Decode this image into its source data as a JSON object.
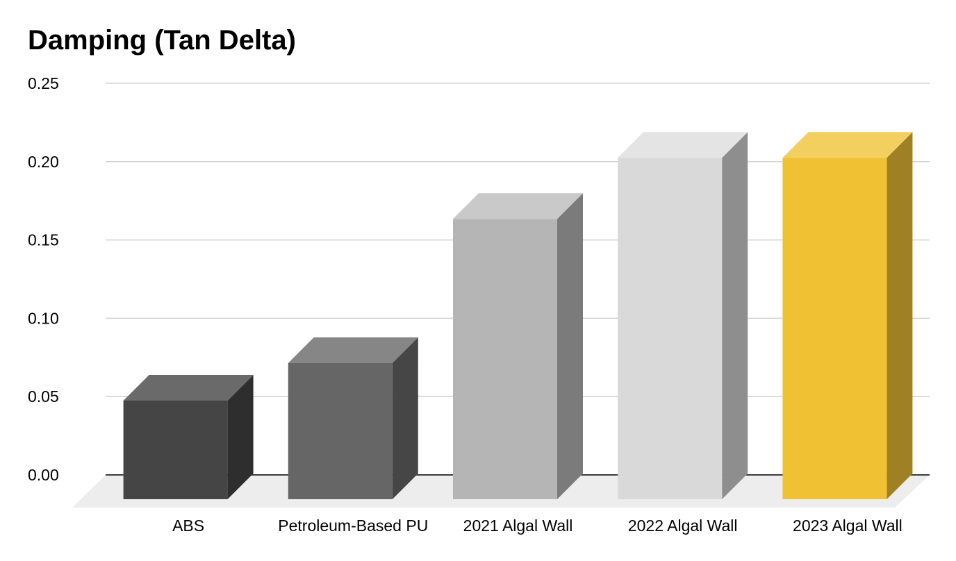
{
  "chart_data": {
    "type": "bar",
    "style": "3d",
    "title": "Damping (Tan Delta)",
    "xlabel": "",
    "ylabel": "",
    "ylim": [
      0,
      0.25
    ],
    "yticks": [
      "0.00",
      "0.05",
      "0.10",
      "0.15",
      "0.20",
      "0.25"
    ],
    "ytick_values": [
      0,
      0.05,
      0.1,
      0.15,
      0.2,
      0.25
    ],
    "grid": true,
    "legend": "none",
    "categories": [
      "ABS",
      "Petroleum-Based PU",
      "2021 Algal Wall",
      "2022 Algal Wall",
      "2023 Algal Wall"
    ],
    "values": [
      0.047,
      0.071,
      0.163,
      0.202,
      0.202
    ],
    "colors": {
      "front": [
        "#454545",
        "#666666",
        "#b5b5b5",
        "#d9d9d9",
        "#f0c133"
      ],
      "top": [
        "#6a6a6a",
        "#868686",
        "#c9c9c9",
        "#e4e4e4",
        "#f3cf60"
      ],
      "side": [
        "#2e2e2e",
        "#464646",
        "#7b7b7b",
        "#8e8e8e",
        "#a08024"
      ],
      "grid": "#d0d0d0",
      "baseline": "#3c3c3c",
      "floor": "#ededed"
    }
  }
}
